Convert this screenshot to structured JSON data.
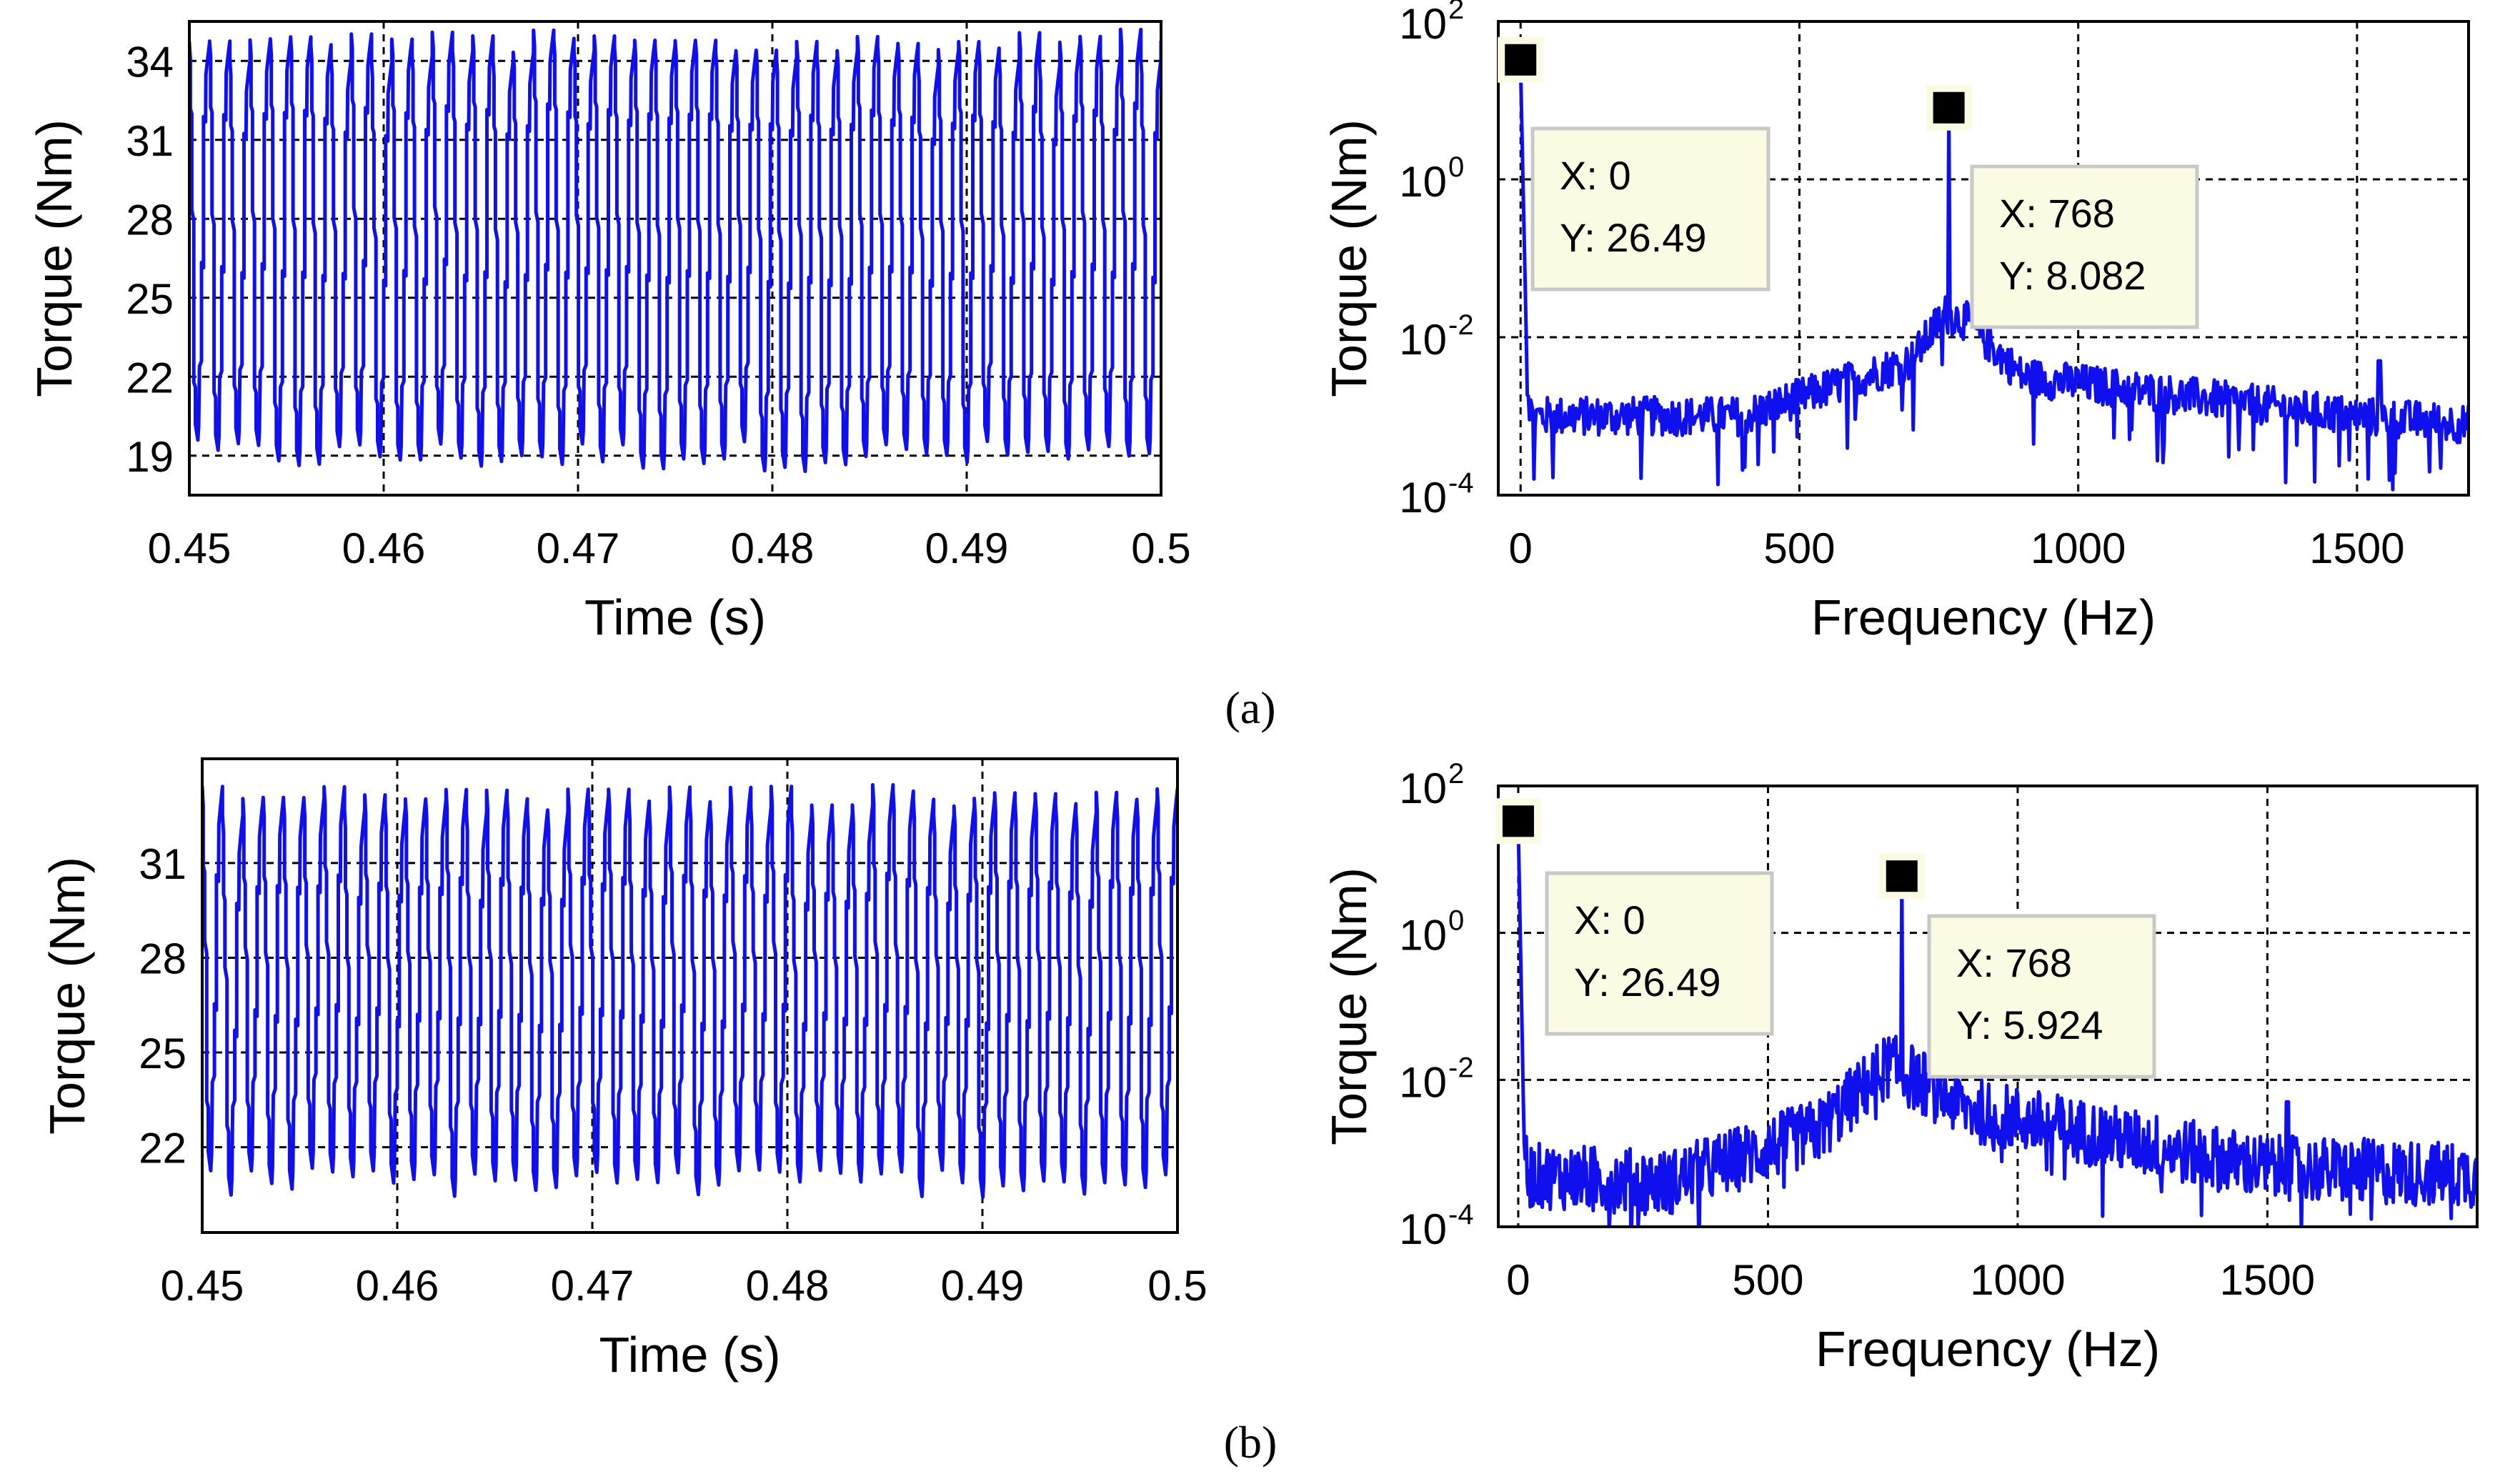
{
  "figure": {
    "captions": {
      "a": "(a)",
      "b": "(b)"
    }
  },
  "chart_data": [
    {
      "id": "a-time",
      "type": "line",
      "xlabel": "Time (s)",
      "ylabel": "Torque (Nm)",
      "xlim": [
        0.45,
        0.5
      ],
      "ylim": [
        17.5,
        35.5
      ],
      "xticks": [
        0.45,
        0.46,
        0.47,
        0.48,
        0.49,
        0.5
      ],
      "xtick_labels": [
        "0.45",
        "0.46",
        "0.47",
        "0.48",
        "0.49",
        "0.5"
      ],
      "yticks": [
        19,
        22,
        25,
        28,
        31,
        34
      ],
      "ytick_labels": [
        "19",
        "22",
        "25",
        "28",
        "31",
        "34"
      ],
      "grid": true,
      "color": "#1010ee",
      "waveform": {
        "cycles": 48,
        "min": 19,
        "max": 34.5,
        "min_spread": 0.6,
        "max_spread": 0.7
      }
    },
    {
      "id": "a-spectrum",
      "type": "line",
      "yscale": "log",
      "xlabel": "Frequency (Hz)",
      "ylabel": "Torque (Nm)",
      "xlim": [
        -40,
        1700
      ],
      "ylim_exp": [
        -4,
        2
      ],
      "xticks": [
        0,
        500,
        1000,
        1500
      ],
      "xtick_labels": [
        "0",
        "500",
        "1000",
        "1500"
      ],
      "yticks_exp": [
        -4,
        -2,
        0,
        2
      ],
      "ytick_base": "10",
      "ytick_exps": [
        "-4",
        "-2",
        "0",
        "2"
      ],
      "grid": true,
      "color": "#1010ee",
      "spectrum": {
        "floor": [
          [
            0,
            2.0
          ],
          [
            20,
            3.0
          ],
          [
            400,
            3.0
          ],
          [
            700,
            2.3
          ],
          [
            760,
            1.7
          ],
          [
            800,
            1.8
          ],
          [
            900,
            2.5
          ],
          [
            1500,
            3.0
          ],
          [
            1700,
            3.1
          ]
        ],
        "noise": 0.25,
        "spike2_x": 1540
      },
      "datatips": [
        {
          "x": 0,
          "y": 26.49,
          "x_label": "X: 0",
          "y_label": "Y: 26.49"
        },
        {
          "x": 768,
          "y": 8.082,
          "x_label": "X: 768",
          "y_label": "Y: 8.082"
        }
      ]
    },
    {
      "id": "b-time",
      "type": "line",
      "xlabel": "Time (s)",
      "ylabel": "Torque (Nm)",
      "xlim": [
        0.45,
        0.5
      ],
      "ylim": [
        19.3,
        34.3
      ],
      "xticks": [
        0.45,
        0.46,
        0.47,
        0.48,
        0.49,
        0.5
      ],
      "xtick_labels": [
        "0.45",
        "0.46",
        "0.47",
        "0.48",
        "0.49",
        "0.5"
      ],
      "yticks": [
        22,
        25,
        28,
        31
      ],
      "ytick_labels": [
        "22",
        "25",
        "28",
        "31"
      ],
      "grid": true,
      "color": "#1010ee",
      "waveform": {
        "cycles": 48,
        "min": 20.9,
        "max": 33.0,
        "min_spread": 0.5,
        "max_spread": 0.5
      }
    },
    {
      "id": "b-spectrum",
      "type": "line",
      "yscale": "log",
      "xlabel": "Frequency (Hz)",
      "ylabel": "Torque (Nm)",
      "xlim": [
        -40,
        1920
      ],
      "ylim_exp": [
        -4,
        2
      ],
      "xticks": [
        0,
        500,
        1000,
        1500
      ],
      "xtick_labels": [
        "0",
        "500",
        "1000",
        "1500"
      ],
      "yticks_exp": [
        -4,
        -2,
        0,
        2
      ],
      "ytick_base": "10",
      "ytick_exps": [
        "-4",
        "-2",
        "0",
        "2"
      ],
      "grid": true,
      "color": "#1010ee",
      "spectrum": {
        "floor": [
          [
            0,
            2.4
          ],
          [
            20,
            3.3
          ],
          [
            300,
            3.4
          ],
          [
            600,
            2.7
          ],
          [
            740,
            1.8
          ],
          [
            800,
            2.0
          ],
          [
            900,
            2.4
          ],
          [
            1500,
            3.2
          ],
          [
            1920,
            3.3
          ]
        ],
        "noise": 0.45,
        "spike2_x": 1540
      },
      "datatips": [
        {
          "x": 0,
          "y": 26.49,
          "x_label": "X: 0",
          "y_label": "Y: 26.49"
        },
        {
          "x": 768,
          "y": 5.924,
          "x_label": "X: 768",
          "y_label": "Y: 5.924"
        }
      ]
    }
  ]
}
